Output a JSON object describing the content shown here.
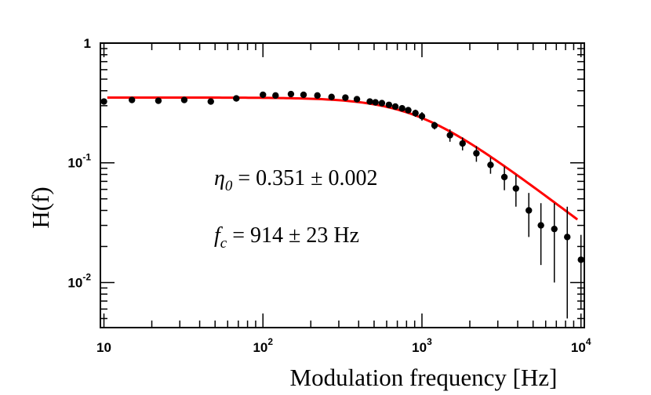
{
  "chart_data": {
    "type": "scatter",
    "xscale": "log",
    "yscale": "log",
    "xlim": [
      9.5,
      10500
    ],
    "ylim": [
      0.0042,
      1
    ],
    "xlabel": "Modulation frequency [Hz]",
    "ylabel": "H(f)",
    "x_ticks": [
      {
        "value": 10,
        "base": "10",
        "exp": ""
      },
      {
        "value": 100,
        "base": "10",
        "exp": "2"
      },
      {
        "value": 1000,
        "base": "10",
        "exp": "3"
      },
      {
        "value": 10000,
        "base": "10",
        "exp": "4"
      }
    ],
    "y_ticks": [
      {
        "value": 0.01,
        "base": "10",
        "exp": "-2"
      },
      {
        "value": 0.1,
        "base": "10",
        "exp": "-1"
      },
      {
        "value": 1,
        "base": "1",
        "exp": ""
      }
    ],
    "annotations": {
      "eta_symbol": "η",
      "eta_sub": "0",
      "eta_text": " = 0.351 ± 0.002",
      "fc_symbol": "f",
      "fc_sub": "c",
      "fc_text": " = 914 ± 23 Hz"
    },
    "fit": {
      "name": "fit",
      "model": "eta0 / sqrt(1 + (f/fc)^2)",
      "eta0": 0.351,
      "fc": 914,
      "x_range": [
        10.5,
        9500
      ],
      "color": "#ff0000"
    },
    "series": [
      {
        "name": "data",
        "color": "#000000",
        "points": [
          {
            "x": 10,
            "y": 0.325,
            "err": 0
          },
          {
            "x": 15,
            "y": 0.335,
            "err": 0
          },
          {
            "x": 22,
            "y": 0.33,
            "err": 0
          },
          {
            "x": 32,
            "y": 0.335,
            "err": 0
          },
          {
            "x": 47,
            "y": 0.325,
            "err": 0
          },
          {
            "x": 68,
            "y": 0.345,
            "err": 0
          },
          {
            "x": 100,
            "y": 0.37,
            "err": 0
          },
          {
            "x": 120,
            "y": 0.365,
            "err": 0
          },
          {
            "x": 150,
            "y": 0.375,
            "err": 0
          },
          {
            "x": 180,
            "y": 0.37,
            "err": 0
          },
          {
            "x": 220,
            "y": 0.365,
            "err": 0
          },
          {
            "x": 270,
            "y": 0.355,
            "err": 0
          },
          {
            "x": 330,
            "y": 0.35,
            "err": 0
          },
          {
            "x": 390,
            "y": 0.34,
            "err": 0
          },
          {
            "x": 470,
            "y": 0.325,
            "err": 0
          },
          {
            "x": 510,
            "y": 0.32,
            "err": 0
          },
          {
            "x": 560,
            "y": 0.315,
            "err": 0
          },
          {
            "x": 620,
            "y": 0.305,
            "err": 0
          },
          {
            "x": 680,
            "y": 0.295,
            "err": 0
          },
          {
            "x": 750,
            "y": 0.285,
            "err": 0.012
          },
          {
            "x": 820,
            "y": 0.275,
            "err": 0.015
          },
          {
            "x": 910,
            "y": 0.26,
            "err": 0.018
          },
          {
            "x": 1000,
            "y": 0.245,
            "err": 0.02
          },
          {
            "x": 1200,
            "y": 0.205,
            "err": 0.015
          },
          {
            "x": 1500,
            "y": 0.17,
            "err": 0.02
          },
          {
            "x": 1800,
            "y": 0.145,
            "err": 0.018
          },
          {
            "x": 2200,
            "y": 0.12,
            "err": 0.018
          },
          {
            "x": 2700,
            "y": 0.096,
            "err": 0.015
          },
          {
            "x": 3300,
            "y": 0.076,
            "err": 0.017
          },
          {
            "x": 3900,
            "y": 0.061,
            "err": 0.018
          },
          {
            "x": 4700,
            "y": 0.04,
            "err": 0.016
          },
          {
            "x": 5600,
            "y": 0.03,
            "err": 0.016
          },
          {
            "x": 6800,
            "y": 0.028,
            "err": 0.018
          },
          {
            "x": 8200,
            "y": 0.024,
            "err": 0.019
          },
          {
            "x": 10000,
            "y": 0.0155,
            "err": 0.0095
          }
        ]
      }
    ]
  }
}
